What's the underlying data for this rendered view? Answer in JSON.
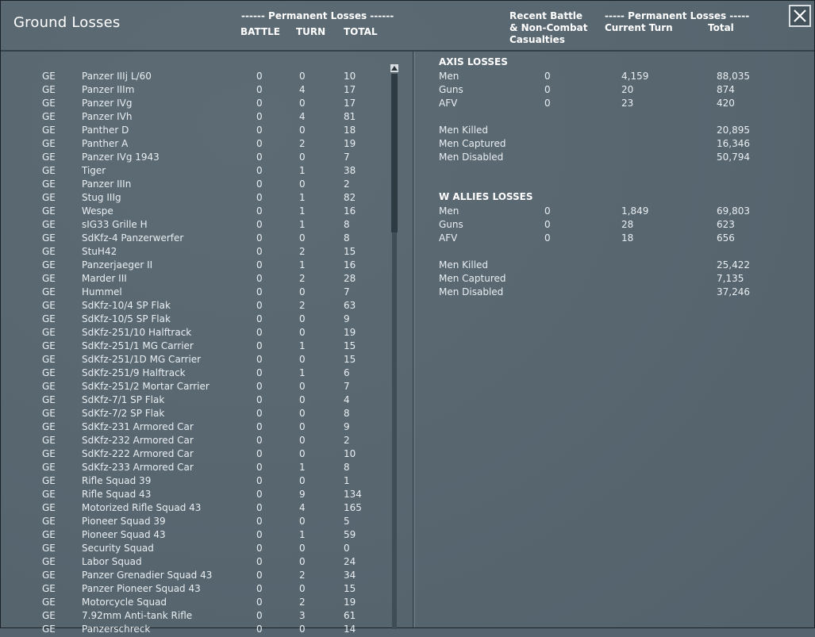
{
  "window": {
    "title": "Ground Losses",
    "close_icon": "close-icon"
  },
  "left_header": {
    "group": "------ Permanent Losses ------",
    "col_battle": "BATTLE",
    "col_turn": "TURN",
    "col_total": "TOTAL"
  },
  "right_header": {
    "recent_line1": "Recent Battle",
    "recent_line2": "& Non-Combat",
    "recent_line3": "Casualties",
    "group": "----- Permanent Losses -----",
    "col_current": "Current Turn",
    "col_total": "Total"
  },
  "units": [
    {
      "nat": "GE",
      "name": "Panzer IIIj L/60",
      "battle": "0",
      "turn": "0",
      "total": "10"
    },
    {
      "nat": "GE",
      "name": "Panzer IIIm",
      "battle": "0",
      "turn": "4",
      "total": "17"
    },
    {
      "nat": "GE",
      "name": "Panzer IVg",
      "battle": "0",
      "turn": "0",
      "total": "17"
    },
    {
      "nat": "GE",
      "name": "Panzer IVh",
      "battle": "0",
      "turn": "4",
      "total": "81"
    },
    {
      "nat": "GE",
      "name": "Panther D",
      "battle": "0",
      "turn": "0",
      "total": "18"
    },
    {
      "nat": "GE",
      "name": "Panther A",
      "battle": "0",
      "turn": "2",
      "total": "19"
    },
    {
      "nat": "GE",
      "name": "Panzer IVg 1943",
      "battle": "0",
      "turn": "0",
      "total": "7"
    },
    {
      "nat": "GE",
      "name": "Tiger",
      "battle": "0",
      "turn": "1",
      "total": "38"
    },
    {
      "nat": "GE",
      "name": "Panzer IIIn",
      "battle": "0",
      "turn": "0",
      "total": "2"
    },
    {
      "nat": "GE",
      "name": "Stug IIIg",
      "battle": "0",
      "turn": "1",
      "total": "82"
    },
    {
      "nat": "GE",
      "name": "Wespe",
      "battle": "0",
      "turn": "1",
      "total": "16"
    },
    {
      "nat": "GE",
      "name": "sIG33 Grille H",
      "battle": "0",
      "turn": "1",
      "total": "8"
    },
    {
      "nat": "GE",
      "name": "SdKfz-4 Panzerwerfer",
      "battle": "0",
      "turn": "0",
      "total": "8"
    },
    {
      "nat": "GE",
      "name": "StuH42",
      "battle": "0",
      "turn": "2",
      "total": "15"
    },
    {
      "nat": "GE",
      "name": "Panzerjaeger II",
      "battle": "0",
      "turn": "1",
      "total": "16"
    },
    {
      "nat": "GE",
      "name": "Marder III",
      "battle": "0",
      "turn": "2",
      "total": "28"
    },
    {
      "nat": "GE",
      "name": "Hummel",
      "battle": "0",
      "turn": "0",
      "total": "7"
    },
    {
      "nat": "GE",
      "name": "SdKfz-10/4 SP Flak",
      "battle": "0",
      "turn": "2",
      "total": "63"
    },
    {
      "nat": "GE",
      "name": "SdKfz-10/5 SP Flak",
      "battle": "0",
      "turn": "0",
      "total": "9"
    },
    {
      "nat": "GE",
      "name": "SdKfz-251/10 Halftrack",
      "battle": "0",
      "turn": "0",
      "total": "19"
    },
    {
      "nat": "GE",
      "name": "SdKfz-251/1 MG Carrier",
      "battle": "0",
      "turn": "1",
      "total": "15"
    },
    {
      "nat": "GE",
      "name": "SdKfz-251/1D MG Carrier",
      "battle": "0",
      "turn": "0",
      "total": "15"
    },
    {
      "nat": "GE",
      "name": "SdKfz-251/9 Halftrack",
      "battle": "0",
      "turn": "1",
      "total": "6"
    },
    {
      "nat": "GE",
      "name": "SdKfz-251/2 Mortar Carrier",
      "battle": "0",
      "turn": "0",
      "total": "7"
    },
    {
      "nat": "GE",
      "name": "SdKfz-7/1 SP Flak",
      "battle": "0",
      "turn": "0",
      "total": "4"
    },
    {
      "nat": "GE",
      "name": "SdKfz-7/2 SP Flak",
      "battle": "0",
      "turn": "0",
      "total": "8"
    },
    {
      "nat": "GE",
      "name": "SdKfz-231 Armored Car",
      "battle": "0",
      "turn": "0",
      "total": "9"
    },
    {
      "nat": "GE",
      "name": "SdKfz-232 Armored Car",
      "battle": "0",
      "turn": "0",
      "total": "2"
    },
    {
      "nat": "GE",
      "name": "SdKfz-222 Armored Car",
      "battle": "0",
      "turn": "0",
      "total": "10"
    },
    {
      "nat": "GE",
      "name": "SdKfz-233 Armored Car",
      "battle": "0",
      "turn": "1",
      "total": "8"
    },
    {
      "nat": "GE",
      "name": "Rifle Squad 39",
      "battle": "0",
      "turn": "0",
      "total": "1"
    },
    {
      "nat": "GE",
      "name": "Rifle Squad 43",
      "battle": "0",
      "turn": "9",
      "total": "134"
    },
    {
      "nat": "GE",
      "name": "Motorized Rifle Squad 43",
      "battle": "0",
      "turn": "4",
      "total": "165"
    },
    {
      "nat": "GE",
      "name": "Pioneer Squad 39",
      "battle": "0",
      "turn": "0",
      "total": "5"
    },
    {
      "nat": "GE",
      "name": "Pioneer Squad 43",
      "battle": "0",
      "turn": "1",
      "total": "59"
    },
    {
      "nat": "GE",
      "name": "Security Squad",
      "battle": "0",
      "turn": "0",
      "total": "0"
    },
    {
      "nat": "GE",
      "name": "Labor Squad",
      "battle": "0",
      "turn": "0",
      "total": "24"
    },
    {
      "nat": "GE",
      "name": "Panzer Grenadier Squad 43",
      "battle": "0",
      "turn": "2",
      "total": "34"
    },
    {
      "nat": "GE",
      "name": "Panzer Pioneer Squad 43",
      "battle": "0",
      "turn": "0",
      "total": "15"
    },
    {
      "nat": "GE",
      "name": "Motorcycle Squad",
      "battle": "0",
      "turn": "2",
      "total": "19"
    },
    {
      "nat": "GE",
      "name": "7.92mm Anti-tank Rifle",
      "battle": "0",
      "turn": "3",
      "total": "61"
    },
    {
      "nat": "GE",
      "name": "Panzerschreck",
      "battle": "0",
      "turn": "0",
      "total": "14"
    }
  ],
  "axis": {
    "title": "AXIS LOSSES",
    "rows": [
      {
        "label": "Men",
        "recent": "0",
        "current": "4,159",
        "total": "88,035"
      },
      {
        "label": "Guns",
        "recent": "0",
        "current": "20",
        "total": "874"
      },
      {
        "label": "AFV",
        "recent": "0",
        "current": "23",
        "total": "420"
      }
    ],
    "casualties": [
      {
        "label": "Men Killed",
        "total": "20,895"
      },
      {
        "label": "Men Captured",
        "total": "16,346"
      },
      {
        "label": "Men Disabled",
        "total": "50,794"
      }
    ]
  },
  "allies": {
    "title": "W ALLIES LOSSES",
    "rows": [
      {
        "label": "Men",
        "recent": "0",
        "current": "1,849",
        "total": "69,803"
      },
      {
        "label": "Guns",
        "recent": "0",
        "current": "28",
        "total": "623"
      },
      {
        "label": "AFV",
        "recent": "0",
        "current": "18",
        "total": "656"
      }
    ],
    "casualties": [
      {
        "label": "Men Killed",
        "total": "25,422"
      },
      {
        "label": "Men Captured",
        "total": "7,135"
      },
      {
        "label": "Men Disabled",
        "total": "37,246"
      }
    ]
  }
}
